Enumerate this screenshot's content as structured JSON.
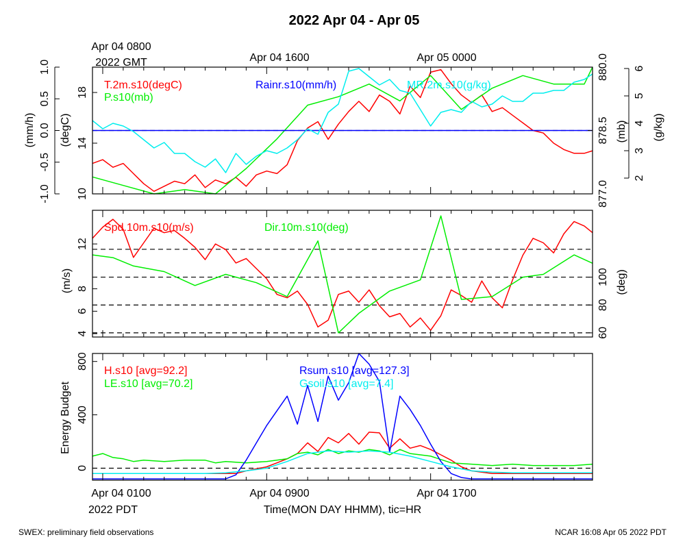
{
  "title": "2022 Apr 04 - Apr 05",
  "top_axis": {
    "ticks": [
      {
        "line1": "Apr 04 0800",
        "line2": "2022 GMT",
        "hour": 0
      },
      {
        "line1": "Apr 04 1600",
        "line2": "",
        "hour": 8
      },
      {
        "line1": "Apr 05 0000",
        "line2": "",
        "hour": 16
      }
    ]
  },
  "bottom_axis": {
    "label": "Time(MON DAY HHMM), tic=HR",
    "ticks": [
      {
        "line1": "Apr 04 0100",
        "line2": "2022 PDT",
        "hour": 0
      },
      {
        "line1": "Apr 04 0900",
        "line2": "",
        "hour": 8
      },
      {
        "line1": "Apr 04 1700",
        "line2": "",
        "hour": 16
      }
    ]
  },
  "footer": {
    "left": "SWEX: preliminary field observations",
    "right": "NCAR 16:08 Apr 05 2022 PDT"
  },
  "colors": {
    "red": "#ff0000",
    "green": "#00ee00",
    "blue": "#0000ff",
    "cyan": "#00eeee",
    "black": "#000000"
  },
  "chart_data": [
    {
      "type": "line",
      "panel": "top",
      "x_range_hours": [
        -0.5,
        23.9
      ],
      "axes": {
        "mmh": {
          "label": "(mm/h)",
          "side": "left-outer",
          "range": [
            -1.0,
            1.0
          ],
          "ticks": [
            "-1.0",
            "-0.5",
            "0.0",
            "0.5",
            "1.0"
          ]
        },
        "degC": {
          "label": "(degC)",
          "side": "left-inner",
          "range": [
            10,
            20
          ],
          "ticks": [
            "10",
            "14",
            "18"
          ]
        },
        "mb": {
          "label": "(mb)",
          "side": "right-inner",
          "range": [
            877.0,
            880.0
          ],
          "ticks": [
            "877.0",
            "878.5",
            "880.0"
          ]
        },
        "gkg": {
          "label": "(g/kg)",
          "side": "right-outer",
          "range": [
            2,
            6
          ],
          "ticks": [
            "2",
            "3",
            "4",
            "5",
            "6"
          ]
        }
      },
      "dashed_levels": [
        {
          "axis": "mmh",
          "value": 0.0
        }
      ],
      "series": [
        {
          "name": "T.2m.s10(degC)",
          "color": "#ff0000",
          "axis": "degC",
          "x": [
            -0.5,
            0,
            0.5,
            1,
            1.5,
            2,
            2.5,
            3,
            3.5,
            4,
            4.5,
            5,
            5.5,
            6,
            6.5,
            7,
            7.5,
            8,
            8.5,
            9,
            9.5,
            10,
            10.5,
            11,
            11.5,
            12,
            12.5,
            13,
            13.5,
            14,
            14.5,
            15,
            15.5,
            16,
            16.5,
            17,
            17.5,
            18,
            18.5,
            19,
            19.5,
            20,
            20.5,
            21,
            21.5,
            22,
            22.5,
            23,
            23.5,
            23.9
          ],
          "y": [
            12.4,
            12.7,
            12.1,
            12.4,
            11.6,
            10.8,
            10.2,
            10.6,
            11.0,
            10.8,
            11.5,
            10.5,
            11.1,
            10.8,
            11.3,
            10.6,
            11.5,
            11.8,
            11.6,
            12.3,
            14.2,
            15.2,
            15.7,
            14.3,
            15.5,
            16.5,
            17.3,
            16.5,
            17.8,
            17.3,
            16.3,
            18.5,
            17.6,
            19.6,
            19.8,
            18.7,
            17.8,
            17.2,
            17.8,
            16.5,
            16.8,
            16.2,
            15.6,
            15.0,
            14.8,
            14.0,
            13.5,
            13.2,
            13.2,
            13.4
          ]
        },
        {
          "name": "P.s10(mb)",
          "color": "#00ee00",
          "axis": "mb",
          "x": [
            -0.5,
            1,
            2.5,
            4,
            5.5,
            7,
            8.5,
            10,
            11.5,
            13,
            14.5,
            16,
            17.5,
            19,
            20.5,
            22,
            23.5,
            23.9
          ],
          "y": [
            877.4,
            877.2,
            876.9,
            877.1,
            876.8,
            877.6,
            878.3,
            879.1,
            879.3,
            879.6,
            879.2,
            879.8,
            879.0,
            879.5,
            879.8,
            879.6,
            879.6,
            880.0
          ]
        },
        {
          "name": "Rainr.s10(mm/h)",
          "color": "#0000ff",
          "axis": "mmh",
          "x": [
            -0.5,
            23.9
          ],
          "y": [
            0.0,
            0.0
          ]
        },
        {
          "name": "MR.2m.s10(g/kg)",
          "color": "#00eeee",
          "axis": "gkg",
          "x": [
            -0.5,
            0,
            0.5,
            1,
            1.5,
            2,
            2.5,
            3,
            3.5,
            4,
            4.5,
            5,
            5.5,
            6,
            6.5,
            7,
            7.5,
            8,
            8.5,
            9,
            9.5,
            10,
            10.5,
            11,
            11.5,
            12,
            12.5,
            13,
            13.5,
            14,
            14.5,
            15,
            15.5,
            16,
            16.5,
            17,
            17.5,
            18,
            18.5,
            19,
            19.5,
            20,
            20.5,
            21,
            21.5,
            22,
            22.5,
            23,
            23.5,
            23.9
          ],
          "y": [
            4.1,
            3.8,
            4.0,
            3.9,
            3.7,
            3.4,
            3.1,
            3.3,
            2.9,
            2.9,
            2.6,
            2.4,
            2.7,
            2.2,
            2.9,
            2.5,
            2.8,
            3.0,
            2.9,
            3.1,
            3.4,
            3.8,
            3.6,
            4.4,
            4.7,
            5.9,
            6.0,
            5.7,
            5.4,
            5.6,
            5.2,
            5.1,
            4.5,
            3.9,
            4.4,
            4.5,
            4.4,
            4.8,
            4.6,
            4.7,
            5.0,
            4.8,
            4.8,
            5.1,
            5.1,
            5.2,
            5.2,
            5.5,
            5.6,
            5.8
          ]
        }
      ]
    },
    {
      "type": "line",
      "panel": "middle",
      "x_range_hours": [
        -0.5,
        23.9
      ],
      "axes": {
        "ms": {
          "label": "(m/s)",
          "side": "left",
          "range": [
            3.7,
            15.0
          ],
          "ticks": [
            "4",
            "6",
            "8",
            "12"
          ]
        },
        "deg": {
          "label": "(deg)",
          "side": "right",
          "range": [
            57,
            148
          ],
          "ticks": [
            "60",
            "80",
            "100"
          ]
        }
      },
      "dashed_levels": [
        {
          "axis": "deg",
          "value": 60
        },
        {
          "axis": "deg",
          "value": 80
        },
        {
          "axis": "deg",
          "value": 100
        },
        {
          "axis": "deg",
          "value": 120
        }
      ],
      "series": [
        {
          "name": "Spd.10m.s10(m/s)",
          "color": "#ff0000",
          "axis": "ms",
          "x": [
            -0.5,
            0,
            0.5,
            1,
            1.5,
            2,
            2.5,
            3,
            3.5,
            4,
            4.5,
            5,
            5.5,
            6,
            6.5,
            7,
            7.5,
            8,
            8.5,
            9,
            9.5,
            10,
            10.5,
            11,
            11.5,
            12,
            12.5,
            13,
            13.5,
            14,
            14.5,
            15,
            15.5,
            16,
            16.5,
            17,
            17.5,
            18,
            18.5,
            19,
            19.5,
            20,
            20.5,
            21,
            21.5,
            22,
            22.5,
            23,
            23.5,
            23.9
          ],
          "y": [
            12.5,
            13.5,
            14.2,
            13.3,
            10.8,
            12.1,
            13.4,
            13.0,
            13.2,
            12.5,
            11.7,
            10.6,
            12.0,
            11.5,
            10.3,
            10.7,
            9.8,
            8.9,
            7.5,
            7.2,
            7.8,
            6.6,
            4.6,
            5.2,
            7.5,
            7.8,
            6.8,
            7.9,
            6.5,
            5.5,
            5.8,
            4.6,
            5.4,
            4.3,
            5.6,
            7.9,
            7.4,
            6.8,
            8.7,
            7.2,
            6.3,
            8.8,
            11.0,
            12.5,
            12.1,
            11.2,
            12.9,
            14.0,
            13.6,
            13.0
          ]
        },
        {
          "name": "Dir.10m.s10(deg)",
          "color": "#00ee00",
          "axis": "deg",
          "x": [
            -0.5,
            0.5,
            1.5,
            3,
            4.5,
            6,
            7.5,
            9,
            10.5,
            11.5,
            12.5,
            14,
            15.5,
            16.5,
            17.5,
            19,
            20.5,
            21.5,
            23,
            23.9
          ],
          "y": [
            116,
            114,
            108,
            104,
            94,
            102,
            96,
            86,
            126,
            60,
            74,
            90,
            98,
            144,
            84,
            86,
            100,
            102,
            116,
            110
          ]
        }
      ]
    },
    {
      "type": "line",
      "panel": "bottom",
      "x_range_hours": [
        -0.5,
        23.9
      ],
      "axes": {
        "energy": {
          "label": "Energy Budget",
          "side": "left",
          "range": [
            -90,
            860
          ],
          "ticks": [
            "0",
            "400",
            "800"
          ]
        }
      },
      "dashed_levels": [
        {
          "axis": "energy",
          "value": 0
        }
      ],
      "series": [
        {
          "name": "H.s10 [avg=92.2]",
          "color": "#ff0000",
          "axis": "energy",
          "x": [
            -0.5,
            0,
            1,
            2,
            3,
            4,
            5,
            6,
            6.5,
            7,
            7.5,
            8,
            8.5,
            9,
            9.5,
            10,
            10.5,
            11,
            11.5,
            12,
            12.5,
            13,
            13.5,
            14,
            14.5,
            15,
            15.5,
            16,
            16.5,
            17,
            17.5,
            18,
            19,
            20,
            21,
            22,
            23,
            23.9
          ],
          "y": [
            -40,
            -40,
            -40,
            -40,
            -40,
            -40,
            -40,
            -40,
            -40,
            -20,
            -5,
            10,
            40,
            70,
            110,
            190,
            125,
            230,
            190,
            260,
            180,
            270,
            265,
            150,
            220,
            150,
            170,
            140,
            100,
            60,
            10,
            -20,
            -40,
            -40,
            -40,
            -40,
            -40,
            -40
          ]
        },
        {
          "name": "LE.s10 [avg=70.2]",
          "color": "#00ee00",
          "axis": "energy",
          "x": [
            -0.5,
            0,
            0.5,
            1,
            1.5,
            2,
            3,
            4,
            5,
            5.5,
            6,
            7,
            8,
            9,
            9.5,
            10,
            10.5,
            11,
            11.5,
            12,
            12.5,
            13,
            13.5,
            14,
            14.5,
            15,
            16,
            17,
            18,
            19,
            20,
            21,
            22,
            23,
            23.9
          ],
          "y": [
            90,
            110,
            80,
            70,
            50,
            60,
            50,
            60,
            60,
            40,
            50,
            40,
            50,
            70,
            110,
            120,
            100,
            140,
            110,
            130,
            120,
            140,
            130,
            100,
            140,
            110,
            90,
            40,
            30,
            20,
            30,
            20,
            20,
            20,
            30
          ]
        },
        {
          "name": "Rsum.s10 [avg=127.3]",
          "color": "#0000ff",
          "axis": "energy",
          "x": [
            -0.5,
            0,
            1,
            2,
            3,
            4,
            5,
            6,
            6.5,
            7,
            7.5,
            8,
            8.5,
            9,
            9.5,
            10,
            10.5,
            11,
            11.5,
            12,
            12.5,
            13,
            13.5,
            14,
            14.5,
            15,
            15.5,
            16,
            16.5,
            17,
            17.5,
            18,
            19,
            20,
            21,
            22,
            23,
            23.9
          ],
          "y": [
            -80,
            -80,
            -80,
            -80,
            -80,
            -80,
            -80,
            -80,
            -50,
            60,
            190,
            320,
            430,
            540,
            330,
            620,
            350,
            690,
            510,
            640,
            900,
            780,
            650,
            120,
            540,
            440,
            320,
            180,
            50,
            -40,
            -70,
            -80,
            -80,
            -80,
            -80,
            -80,
            -80,
            -80
          ]
        },
        {
          "name": "Gsoil.s10 [avg=7.4]",
          "color": "#00eeee",
          "axis": "energy",
          "x": [
            -0.5,
            0,
            1,
            2,
            3,
            4,
            5,
            6,
            7,
            8,
            9,
            10,
            11,
            12,
            13,
            14,
            15,
            16,
            17,
            18,
            19,
            20,
            21,
            22,
            23,
            23.9
          ],
          "y": [
            -40,
            -40,
            -40,
            -40,
            -40,
            -40,
            -40,
            -35,
            -20,
            0,
            50,
            110,
            130,
            120,
            130,
            120,
            90,
            50,
            10,
            -20,
            -30,
            -35,
            -35,
            -35,
            -35,
            -35
          ]
        }
      ]
    }
  ]
}
